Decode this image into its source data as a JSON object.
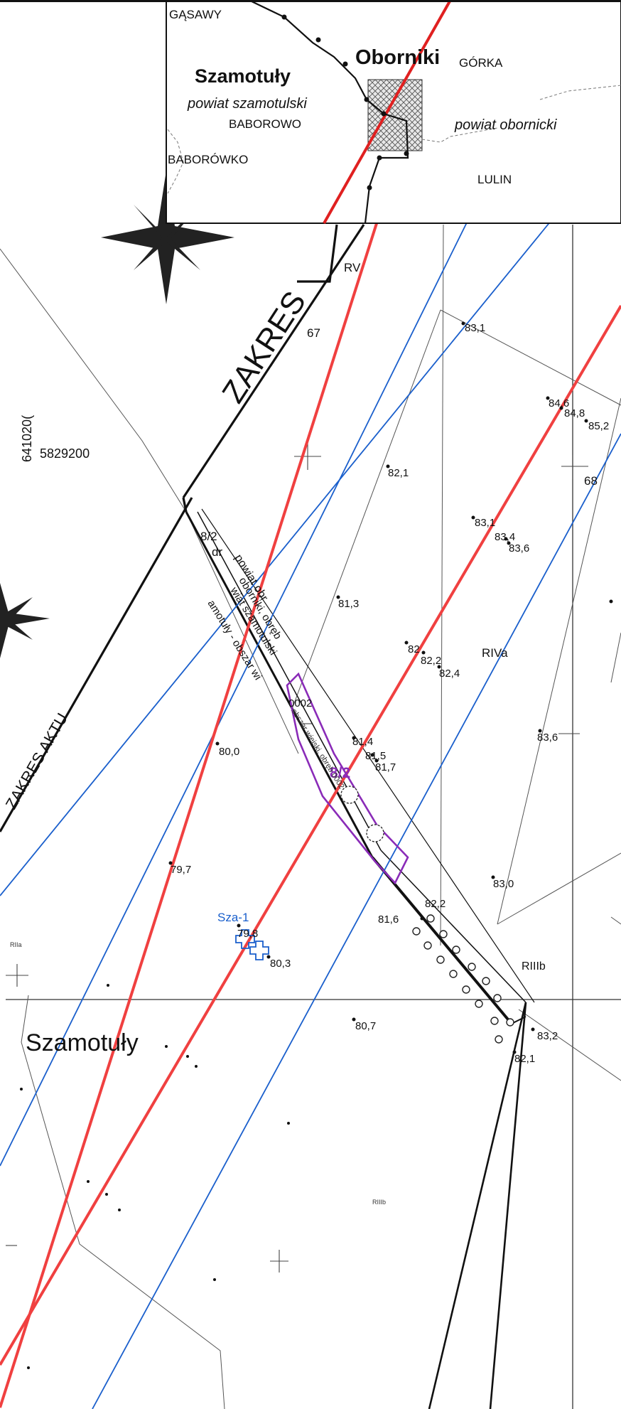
{
  "inset": {
    "places": [
      "GĄSAWY",
      "Szamotuły",
      "powiat szamotulski",
      "BABOROWO",
      "BABORÓWKO",
      "Oborniki",
      "GÓRKA",
      "powiat obornicki",
      "LULIN"
    ]
  },
  "zone_labels": {
    "zakres_main": "ZAKRES",
    "zakres_aktu": "ZAKRES AKTU"
  },
  "parcels": {
    "p67": "67",
    "p68": "68",
    "rv": "RV",
    "riva": "RIVa",
    "riiib": "RIIIb",
    "rilla": "RIIa",
    "riiib_small": "RIIIb",
    "p8_2_left": "8/2",
    "dr": "dr",
    "p8_2_purple": "8/2",
    "town": "Szamotuły"
  },
  "coordinates": {
    "vertical": "641020(",
    "easting": "5829200"
  },
  "boundary_texts": {
    "a": "powiat obr",
    "b": "oborniki, obręb",
    "c": "wiat szamotulski",
    "d": "amotuły - obszar wi",
    "e": "obszar wiejski, obręb 0002",
    "f": "0002"
  },
  "borehole": {
    "label": "Sza-1"
  },
  "elevations": {
    "e1": "83,1",
    "e2": "84,6",
    "e3": "84,8",
    "e4": "85,2",
    "e5": "82,1",
    "e6": "83,1",
    "e7": "83,4",
    "e8": "83,6",
    "e9": "81,3",
    "e10": "82",
    "e11": "82,2",
    "e12": "82,4",
    "e13": "81,4",
    "e14": "81,5",
    "e15": "81,7",
    "e16": "83,6",
    "e17": "80,0",
    "e18": "79,7",
    "e19": "83,0",
    "e20": "82,2",
    "e21": "81,6",
    "e22": "79,8",
    "e23": "80,3",
    "e24": "80,7",
    "e25": "83,2",
    "e26": "82,1"
  },
  "colors": {
    "red_axis": "#f04040",
    "blue_lines": "#1a5fcc",
    "purple_parcel": "#8a2bb8",
    "black": "#111111"
  }
}
